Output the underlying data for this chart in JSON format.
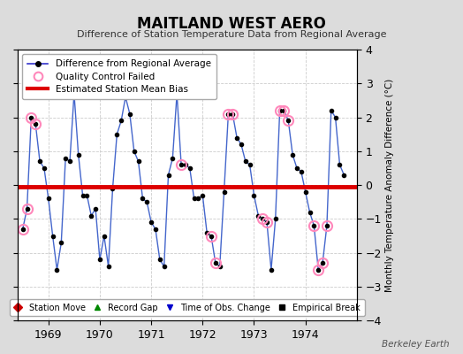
{
  "title": "MAITLAND WEST AERO",
  "subtitle": "Difference of Station Temperature Data from Regional Average",
  "ylabel_right": "Monthly Temperature Anomaly Difference (°C)",
  "credit": "Berkeley Earth",
  "ylim": [
    -4,
    4
  ],
  "bias_value": -0.05,
  "background_color": "#dcdcdc",
  "plot_bg_color": "#ffffff",
  "line_color": "#4466cc",
  "bias_color": "#dd0000",
  "marker_color": "#000000",
  "qc_color": "#ff88bb",
  "monthly_values": [
    -1.3,
    -0.7,
    2.0,
    1.8,
    0.7,
    0.5,
    -0.4,
    -1.5,
    -2.5,
    -1.7,
    0.8,
    0.7,
    2.7,
    0.9,
    -0.3,
    -0.3,
    -0.9,
    -0.7,
    -2.2,
    -1.5,
    -2.4,
    -0.1,
    1.5,
    1.9,
    2.6,
    2.1,
    1.0,
    0.7,
    -0.4,
    -0.5,
    -1.1,
    -1.3,
    -2.2,
    -2.4,
    0.3,
    0.8,
    2.7,
    0.6,
    0.6,
    0.5,
    -0.4,
    -0.4,
    -0.3,
    -1.4,
    -1.5,
    -2.3,
    -2.4,
    -0.2,
    2.1,
    2.1,
    1.4,
    1.2,
    0.7,
    0.6,
    -0.3,
    -0.9,
    -1.0,
    -1.1,
    -2.5,
    -1.0,
    2.2,
    2.2,
    1.9,
    0.9,
    0.5,
    0.4,
    -0.2,
    -0.8,
    -1.2,
    -2.5,
    -2.3,
    -1.2,
    2.2,
    2.0,
    0.6,
    0.3
  ],
  "start_year": 1968,
  "start_month": 7,
  "qc_indices": [
    0,
    1,
    2,
    3,
    12,
    37,
    44,
    45,
    48,
    49,
    56,
    57,
    60,
    61,
    62,
    68,
    69,
    70,
    71
  ],
  "legend_main": [
    {
      "label": "Difference from Regional Average",
      "color": "#3333cc",
      "marker": "o",
      "linestyle": "-"
    },
    {
      "label": "Quality Control Failed",
      "color": "#ff88bb",
      "marker": "o",
      "linestyle": "none"
    },
    {
      "label": "Estimated Station Mean Bias",
      "color": "#dd0000",
      "marker": "none",
      "linestyle": "-"
    }
  ],
  "legend_bottom": [
    {
      "label": "Station Move",
      "color": "#cc0000",
      "marker": "D"
    },
    {
      "label": "Record Gap",
      "color": "#008800",
      "marker": "^"
    },
    {
      "label": "Time of Obs. Change",
      "color": "#0000cc",
      "marker": "v"
    },
    {
      "label": "Empirical Break",
      "color": "#000000",
      "marker": "s"
    }
  ]
}
